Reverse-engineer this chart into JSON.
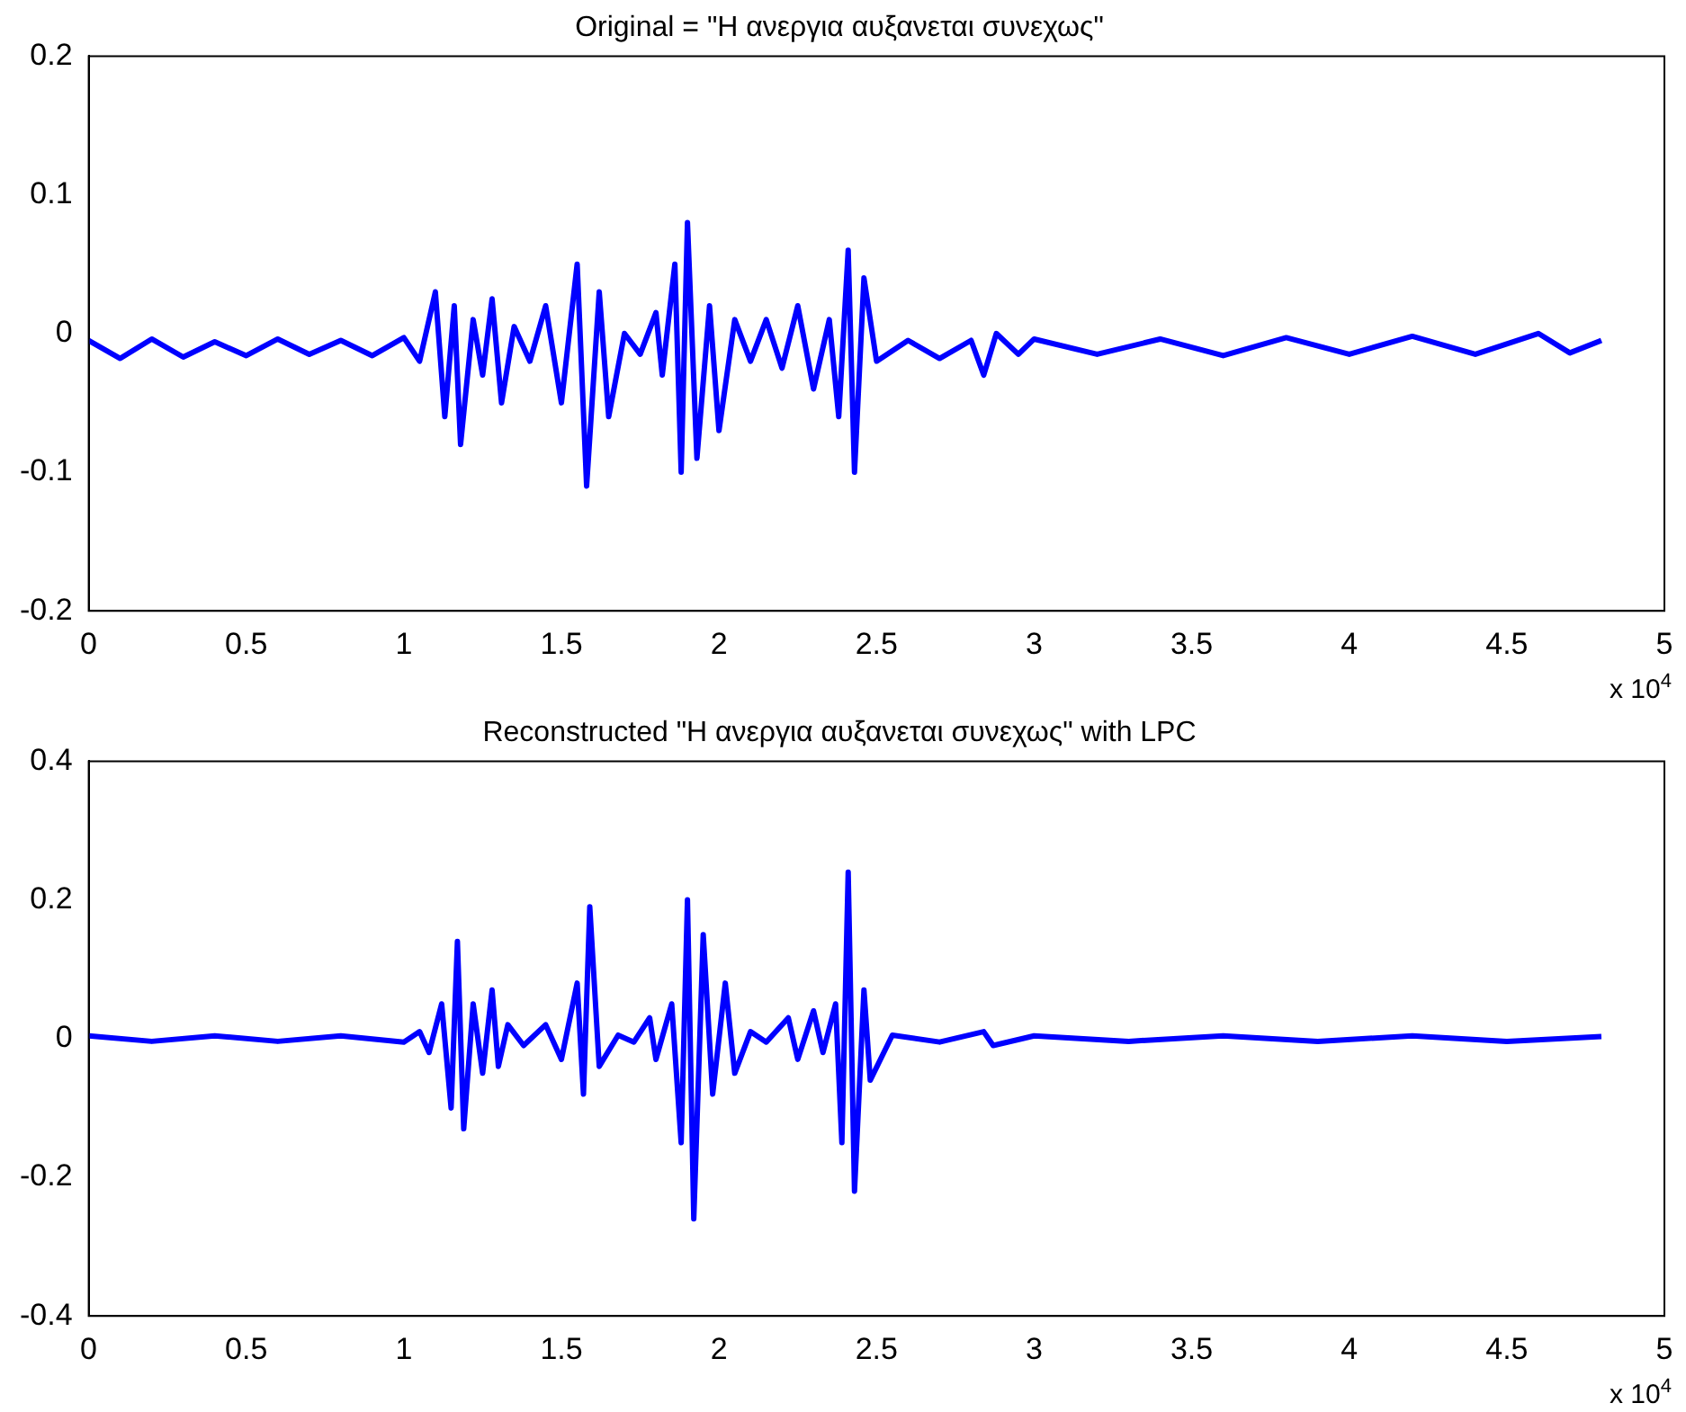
{
  "chart_data": [
    {
      "type": "line",
      "title": "Original = \"Η ανεργια αυξανεται συνεχως\"",
      "color": "#0000ff",
      "marker": "none",
      "line_style": "solid",
      "grid": false,
      "annotations": [
        "x 10$^{4}$"
      ],
      "xlim": [
        0,
        5
      ],
      "xticks": [
        0,
        0.5,
        1,
        1.5,
        2,
        2.5,
        3,
        3.5,
        4,
        4.5,
        5
      ],
      "ylim": [
        -0.2,
        0.2
      ],
      "yticks": [
        -0.2,
        -0.1,
        0,
        0.1,
        0.2
      ],
      "x": [
        0,
        0.1,
        0.2,
        0.3,
        0.4,
        0.5,
        0.6,
        0.7,
        0.8,
        0.9,
        1.0,
        1.05,
        1.1,
        1.13,
        1.16,
        1.18,
        1.22,
        1.25,
        1.28,
        1.31,
        1.35,
        1.4,
        1.45,
        1.5,
        1.55,
        1.58,
        1.62,
        1.65,
        1.7,
        1.75,
        1.8,
        1.82,
        1.86,
        1.88,
        1.9,
        1.93,
        1.97,
        2.0,
        2.05,
        2.1,
        2.15,
        2.2,
        2.25,
        2.3,
        2.35,
        2.38,
        2.41,
        2.43,
        2.46,
        2.5,
        2.6,
        2.7,
        2.8,
        2.84,
        2.88,
        2.95,
        3.0,
        3.2,
        3.4,
        3.6,
        3.8,
        4.0,
        4.2,
        4.4,
        4.6,
        4.7,
        4.8
      ],
      "values": [
        -0.005,
        -0.018,
        -0.004,
        -0.017,
        -0.006,
        -0.016,
        -0.004,
        -0.015,
        -0.005,
        -0.016,
        -0.003,
        -0.02,
        0.03,
        -0.06,
        0.02,
        -0.08,
        0.01,
        -0.03,
        0.025,
        -0.05,
        0.005,
        -0.02,
        0.02,
        -0.05,
        0.05,
        -0.11,
        0.03,
        -0.06,
        0.0,
        -0.015,
        0.015,
        -0.03,
        0.05,
        -0.1,
        0.08,
        -0.09,
        0.02,
        -0.07,
        0.01,
        -0.02,
        0.01,
        -0.025,
        0.02,
        -0.04,
        0.01,
        -0.06,
        0.06,
        -0.1,
        0.04,
        -0.02,
        -0.005,
        -0.018,
        -0.005,
        -0.03,
        0.0,
        -0.015,
        -0.004,
        -0.015,
        -0.004,
        -0.016,
        -0.003,
        -0.015,
        -0.002,
        -0.015,
        0.0,
        -0.014,
        -0.005
      ]
    },
    {
      "type": "line",
      "title": "Reconstructed \"Η ανεργια αυξανεται συνεχως\" with LPC",
      "color": "#0000ff",
      "marker": "none",
      "line_style": "solid",
      "grid": false,
      "annotations": [
        "x 10$^{4}$"
      ],
      "xlim": [
        0,
        5
      ],
      "xticks": [
        0,
        0.5,
        1,
        1.5,
        2,
        2.5,
        3,
        3.5,
        4,
        4.5,
        5
      ],
      "ylim": [
        -0.4,
        0.4
      ],
      "yticks": [
        -0.4,
        -0.2,
        0,
        0.2,
        0.4
      ],
      "x": [
        0,
        0.2,
        0.4,
        0.6,
        0.8,
        1.0,
        1.05,
        1.08,
        1.12,
        1.15,
        1.17,
        1.19,
        1.22,
        1.25,
        1.28,
        1.3,
        1.33,
        1.38,
        1.45,
        1.5,
        1.55,
        1.57,
        1.59,
        1.62,
        1.68,
        1.73,
        1.78,
        1.8,
        1.85,
        1.88,
        1.9,
        1.92,
        1.95,
        1.98,
        2.02,
        2.05,
        2.1,
        2.15,
        2.22,
        2.25,
        2.3,
        2.33,
        2.37,
        2.39,
        2.41,
        2.43,
        2.46,
        2.48,
        2.55,
        2.7,
        2.84,
        2.87,
        3.0,
        3.3,
        3.6,
        3.9,
        4.2,
        4.5,
        4.8
      ],
      "values": [
        0.004,
        -0.004,
        0.004,
        -0.004,
        0.004,
        -0.005,
        0.01,
        -0.02,
        0.05,
        -0.1,
        0.14,
        -0.13,
        0.05,
        -0.05,
        0.07,
        -0.04,
        0.02,
        -0.01,
        0.02,
        -0.03,
        0.08,
        -0.08,
        0.19,
        -0.04,
        0.005,
        -0.005,
        0.03,
        -0.03,
        0.05,
        -0.15,
        0.2,
        -0.26,
        0.15,
        -0.08,
        0.08,
        -0.05,
        0.01,
        -0.005,
        0.03,
        -0.03,
        0.04,
        -0.02,
        0.05,
        -0.15,
        0.24,
        -0.22,
        0.07,
        -0.06,
        0.005,
        -0.005,
        0.01,
        -0.01,
        0.004,
        -0.004,
        0.004,
        -0.004,
        0.004,
        -0.004,
        0.003
      ]
    }
  ]
}
